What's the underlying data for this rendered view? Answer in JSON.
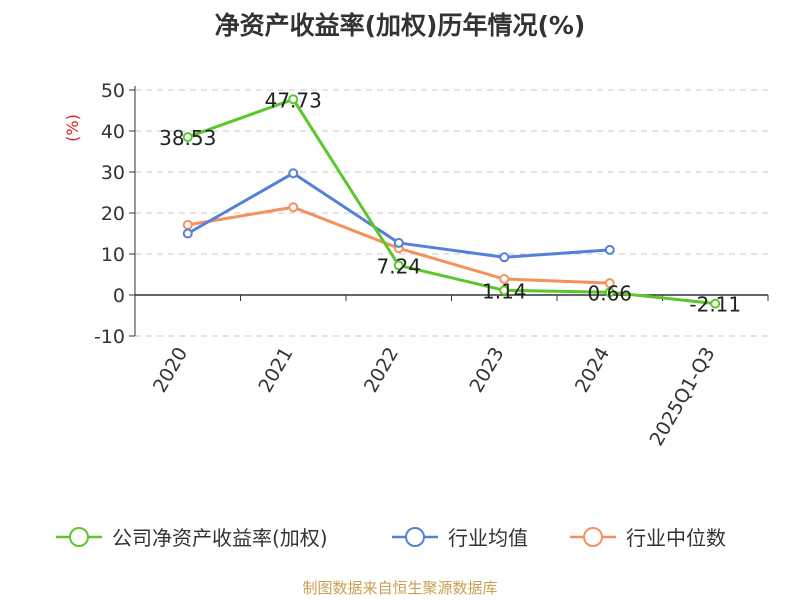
{
  "title": "净资产收益率(加权)历年情况(%)",
  "footer": "制图数据来自恒生聚源数据库",
  "chart_data": {
    "type": "line",
    "ylabel": "(%)",
    "categories": [
      "2020",
      "2021",
      "2022",
      "2023",
      "2024",
      "2025Q1-Q3"
    ],
    "ylim": [
      -10,
      50
    ],
    "yticks": [
      "50",
      "40",
      "30",
      "20",
      "10",
      "0",
      "-10"
    ],
    "grid": true,
    "legend_position": "bottom",
    "series": [
      {
        "name": "公司净资产收益率(加权)",
        "color": "#5cc72a",
        "values": [
          38.53,
          47.73,
          7.24,
          1.14,
          0.66,
          -2.11
        ],
        "labels": [
          "38.53",
          "47.73",
          "7.24",
          "1.14",
          "0.66",
          "-2.11"
        ]
      },
      {
        "name": "行业均值",
        "color": "#5580d8",
        "values": [
          15,
          29.7,
          12.7,
          9.2,
          11,
          null
        ]
      },
      {
        "name": "行业中位数",
        "color": "#f6905c",
        "values": [
          17.1,
          21.4,
          11.4,
          3.9,
          2.9,
          null
        ]
      }
    ]
  }
}
